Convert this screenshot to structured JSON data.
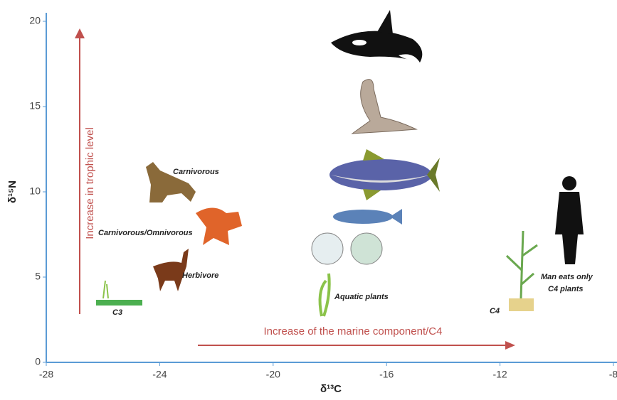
{
  "chart_data": {
    "type": "annotated-axes",
    "xlabel": "δ¹³C",
    "ylabel": "δ¹⁵N",
    "xlim": [
      -28,
      -8
    ],
    "ylim": [
      0,
      20
    ],
    "xticks": [
      -28,
      -24,
      -20,
      -16,
      -12,
      -8
    ],
    "yticks": [
      0,
      5,
      10,
      15,
      20
    ],
    "axis_color": "#5b9bd5",
    "arrows": [
      {
        "label": "Increase in trophic level",
        "color": "#c0504d"
      },
      {
        "label": "Increase of the marine component/C4",
        "color": "#c0504d"
      }
    ],
    "labels": [
      "Carnivorous",
      "Carnivorous/Omnivorous",
      "Herbivore",
      "C3",
      "Aquatic plants",
      "C4",
      "Man eats only",
      "C4 plants"
    ]
  }
}
